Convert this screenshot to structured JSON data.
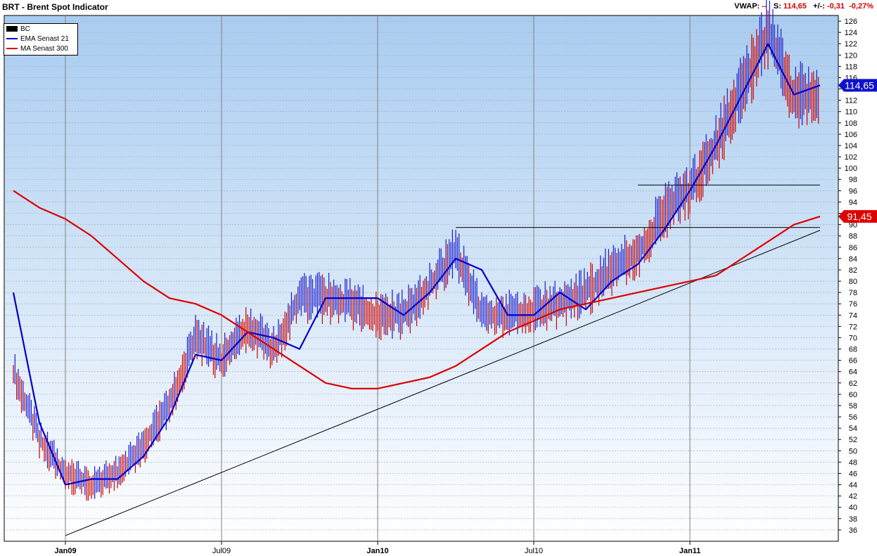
{
  "header": {
    "title": "BRT - Brent Spot Indicator",
    "vwap_label": "VWAP:",
    "vwap_value": "--",
    "s_label": "S:",
    "s_value": "114,65",
    "change_label": "+/-:",
    "change_abs": "-0,31",
    "change_pct": "-0,27%"
  },
  "legend": [
    {
      "label": "BC",
      "color": "#000000",
      "style": "box"
    },
    {
      "label": "EMA  Senast 21",
      "color": "#0000cc",
      "style": "line"
    },
    {
      "label": "MA  Senast 300",
      "color": "#dd0000",
      "style": "line"
    }
  ],
  "chart_data": {
    "type": "line",
    "x_labels": [
      "Jan09",
      "Jul09",
      "Jan10",
      "Jul10",
      "Jan11"
    ],
    "ylim": [
      34,
      127
    ],
    "y_ticks": [
      36,
      38,
      40,
      42,
      44,
      46,
      48,
      50,
      52,
      54,
      56,
      58,
      60,
      62,
      64,
      66,
      68,
      70,
      72,
      74,
      76,
      78,
      80,
      82,
      84,
      86,
      88,
      90,
      92,
      94,
      96,
      98,
      100,
      102,
      104,
      106,
      108,
      110,
      112,
      114,
      116,
      118,
      120,
      122,
      124,
      126
    ],
    "grid": true,
    "legend_position": "top-left",
    "last_price": {
      "label": "114,65",
      "value": 114.65,
      "color": "#1010cc"
    },
    "ma_last": {
      "label": "91,45",
      "value": 91.45,
      "color": "#dd0000"
    },
    "series": [
      {
        "name": "BC",
        "color": "#cc0000",
        "x": [
          "Nov08",
          "Dec08",
          "Jan09",
          "Feb09",
          "Mar09",
          "Apr09",
          "May09",
          "Jun09",
          "Jul09",
          "Aug09",
          "Sep09",
          "Oct09",
          "Nov09",
          "Dec09",
          "Jan10",
          "Feb10",
          "Mar10",
          "Apr10",
          "May10",
          "Jun10",
          "Jul10",
          "Aug10",
          "Sep10",
          "Oct10",
          "Nov10",
          "Dec10",
          "Jan11",
          "Feb11",
          "Mar11",
          "Apr11",
          "May11",
          "Jun11"
        ],
        "values": [
          64,
          52,
          46,
          44,
          46,
          51,
          58,
          70,
          66,
          72,
          68,
          77,
          77,
          76,
          74,
          74,
          79,
          85,
          74,
          74,
          75,
          76,
          78,
          82,
          85,
          92,
          96,
          104,
          114,
          124,
          113,
          113
        ]
      },
      {
        "name": "EMA  Senast 21",
        "color": "#0000cc",
        "x": [
          "Nov08",
          "Dec08",
          "Jan09",
          "Feb09",
          "Mar09",
          "Apr09",
          "May09",
          "Jun09",
          "Jul09",
          "Aug09",
          "Sep09",
          "Oct09",
          "Nov09",
          "Dec09",
          "Jan10",
          "Feb10",
          "Mar10",
          "Apr10",
          "May10",
          "Jun10",
          "Jul10",
          "Aug10",
          "Sep10",
          "Oct10",
          "Nov10",
          "Dec10",
          "Jan11",
          "Feb11",
          "Mar11",
          "Apr11",
          "May11",
          "Jun11"
        ],
        "values": [
          78,
          55,
          44,
          45,
          45,
          49,
          56,
          67,
          66,
          71,
          70,
          68,
          77,
          77,
          77,
          74,
          78,
          84,
          82,
          74,
          74,
          78,
          75,
          80,
          83,
          89,
          96,
          104,
          113,
          122,
          113,
          114.65
        ]
      },
      {
        "name": "MA  Senast 300",
        "color": "#dd0000",
        "x": [
          "Nov08",
          "Dec08",
          "Jan09",
          "Feb09",
          "Mar09",
          "Apr09",
          "May09",
          "Jun09",
          "Jul09",
          "Aug09",
          "Sep09",
          "Oct09",
          "Nov09",
          "Dec09",
          "Jan10",
          "Feb10",
          "Mar10",
          "Apr10",
          "May10",
          "Jun10",
          "Jul10",
          "Aug10",
          "Sep10",
          "Oct10",
          "Nov10",
          "Dec10",
          "Jan11",
          "Feb11",
          "Mar11",
          "Apr11",
          "May11",
          "Jun11"
        ],
        "values": [
          96,
          93,
          91,
          88,
          84,
          80,
          77,
          76,
          74,
          71,
          68,
          65,
          62,
          61,
          61,
          62,
          63,
          65,
          68,
          71,
          73,
          75,
          76,
          77,
          78,
          79,
          80,
          81,
          84,
          87,
          90,
          91.45
        ]
      }
    ],
    "annotations": [
      {
        "type": "trendline",
        "from": [
          "Jan09",
          35
        ],
        "to": [
          "Jun11",
          89
        ]
      },
      {
        "type": "hline",
        "y": 89.5,
        "from": "Apr10",
        "to": "Jun11"
      },
      {
        "type": "hline",
        "y": 97,
        "from": "Nov10",
        "to": "Jun11"
      }
    ]
  }
}
